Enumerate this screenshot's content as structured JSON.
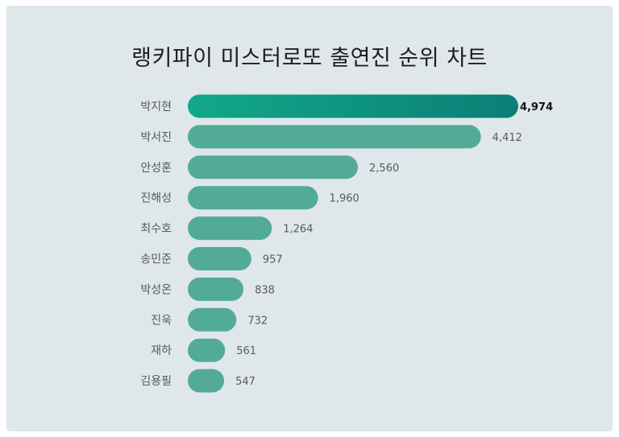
{
  "chart_data": {
    "type": "bar",
    "orientation": "horizontal",
    "title": "랭키파이 미스터로또 출연진 순위 차트",
    "categories": [
      "박지현",
      "박서진",
      "안성훈",
      "진해성",
      "최수호",
      "송민준",
      "박성온",
      "진욱",
      "재하",
      "김용필"
    ],
    "values": [
      4974,
      4412,
      2560,
      1960,
      1264,
      957,
      838,
      732,
      561,
      547
    ],
    "value_labels": [
      "4,974",
      "4,412",
      "2,560",
      "1,960",
      "1,264",
      "957",
      "838",
      "732",
      "561",
      "547"
    ],
    "xlabel": "",
    "ylabel": "",
    "grid": false,
    "legend": "none",
    "colors": {
      "bar": "#52ab98",
      "highlight_start": "#12a88a",
      "highlight_end": "#0b7f76",
      "background": "#dfe7ea"
    }
  }
}
